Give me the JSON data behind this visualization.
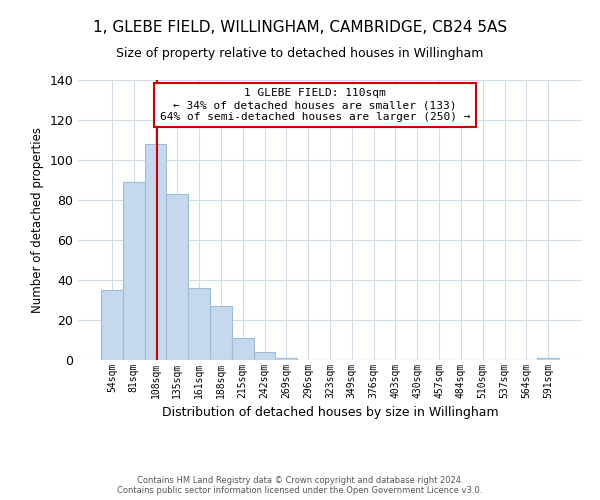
{
  "title": "1, GLEBE FIELD, WILLINGHAM, CAMBRIDGE, CB24 5AS",
  "subtitle": "Size of property relative to detached houses in Willingham",
  "bar_heights": [
    35,
    89,
    108,
    83,
    36,
    27,
    11,
    4,
    1,
    0,
    0,
    0,
    0,
    0,
    0,
    0,
    0,
    0,
    0,
    0,
    1
  ],
  "bin_labels": [
    "54sqm",
    "81sqm",
    "108sqm",
    "135sqm",
    "161sqm",
    "188sqm",
    "215sqm",
    "242sqm",
    "269sqm",
    "296sqm",
    "323sqm",
    "349sqm",
    "376sqm",
    "403sqm",
    "430sqm",
    "457sqm",
    "484sqm",
    "510sqm",
    "537sqm",
    "564sqm",
    "591sqm"
  ],
  "bar_color": "#c5d8ed",
  "bar_edge_color": "#a0bcd8",
  "xlabel": "Distribution of detached houses by size in Willingham",
  "ylabel": "Number of detached properties",
  "ylim": [
    0,
    140
  ],
  "yticks": [
    0,
    20,
    40,
    60,
    80,
    100,
    120,
    140
  ],
  "red_line_x": 2.07,
  "annotation_title": "1 GLEBE FIELD: 110sqm",
  "annotation_line1": "← 34% of detached houses are smaller (133)",
  "annotation_line2": "64% of semi-detached houses are larger (250) →",
  "annotation_box_color": "#ffffff",
  "annotation_box_edge_color": "#cc0000",
  "footer_line1": "Contains HM Land Registry data © Crown copyright and database right 2024.",
  "footer_line2": "Contains public sector information licensed under the Open Government Licence v3.0.",
  "background_color": "#ffffff",
  "grid_color": "#d0dce8",
  "title_fontsize": 11,
  "subtitle_fontsize": 9
}
